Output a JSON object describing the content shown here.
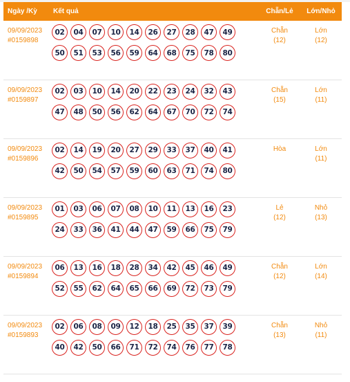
{
  "header": {
    "date_label": "Ngày /Kỳ",
    "result_label": "Kết quả",
    "even_odd_label": "Chẵn/Lẻ",
    "big_small_label": "Lớn/Nhỏ"
  },
  "colors": {
    "accent": "#f28a0e",
    "ball_border": "#d9231f",
    "ball_text": "#1a2344"
  },
  "draws": [
    {
      "date": "09/09/2023",
      "period": "#0159898",
      "numbers": [
        "02",
        "04",
        "07",
        "10",
        "14",
        "26",
        "27",
        "28",
        "47",
        "49",
        "50",
        "51",
        "53",
        "56",
        "59",
        "64",
        "68",
        "75",
        "78",
        "80"
      ],
      "even_odd": "Chẵn",
      "even_odd_count": "(12)",
      "big_small": "Lớn",
      "big_small_count": "(12)"
    },
    {
      "date": "09/09/2023",
      "period": "#0159897",
      "numbers": [
        "02",
        "03",
        "10",
        "14",
        "20",
        "22",
        "23",
        "24",
        "32",
        "43",
        "47",
        "48",
        "50",
        "56",
        "62",
        "64",
        "67",
        "70",
        "72",
        "74"
      ],
      "even_odd": "Chẵn",
      "even_odd_count": "(15)",
      "big_small": "Lớn",
      "big_small_count": "(11)"
    },
    {
      "date": "09/09/2023",
      "period": "#0159896",
      "numbers": [
        "02",
        "14",
        "19",
        "20",
        "27",
        "29",
        "33",
        "37",
        "40",
        "41",
        "42",
        "50",
        "54",
        "57",
        "59",
        "60",
        "63",
        "71",
        "74",
        "80"
      ],
      "even_odd": "Hòa",
      "even_odd_count": "",
      "big_small": "Lớn",
      "big_small_count": "(11)"
    },
    {
      "date": "09/09/2023",
      "period": "#0159895",
      "numbers": [
        "01",
        "03",
        "06",
        "07",
        "08",
        "10",
        "11",
        "13",
        "16",
        "23",
        "24",
        "33",
        "36",
        "41",
        "44",
        "47",
        "59",
        "66",
        "75",
        "79"
      ],
      "even_odd": "Lẻ",
      "even_odd_count": "(12)",
      "big_small": "Nhỏ",
      "big_small_count": "(13)"
    },
    {
      "date": "09/09/2023",
      "period": "#0159894",
      "numbers": [
        "06",
        "13",
        "16",
        "18",
        "28",
        "34",
        "42",
        "45",
        "46",
        "49",
        "52",
        "55",
        "62",
        "64",
        "65",
        "66",
        "69",
        "72",
        "73",
        "79"
      ],
      "even_odd": "Chẵn",
      "even_odd_count": "(12)",
      "big_small": "Lớn",
      "big_small_count": "(14)"
    },
    {
      "date": "09/09/2023",
      "period": "#0159893",
      "numbers": [
        "02",
        "06",
        "08",
        "09",
        "12",
        "18",
        "25",
        "35",
        "37",
        "39",
        "40",
        "42",
        "50",
        "66",
        "71",
        "72",
        "74",
        "76",
        "77",
        "78"
      ],
      "even_odd": "Chẵn",
      "even_odd_count": "(13)",
      "big_small": "Nhỏ",
      "big_small_count": "(11)"
    }
  ]
}
